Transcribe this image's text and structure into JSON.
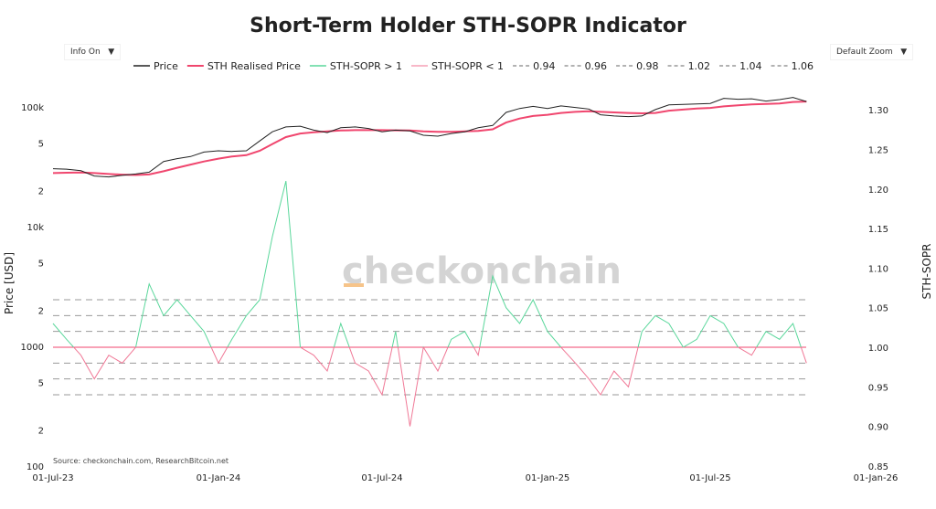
{
  "header": {
    "title": "Short-Term Holder STH-SOPR Indicator",
    "info_label": "Info On",
    "zoom_label": "Default Zoom"
  },
  "watermark": "checkonchain",
  "source": "Source: checkonchain.com, ResearchBitcoin.net",
  "colors": {
    "price": "#222222",
    "realised": "#f0466e",
    "sopr_above": "#5ad79b",
    "sopr_below": "#f07896",
    "ref_lines": "#999999"
  },
  "chart_data": {
    "type": "line",
    "title": "Short-Term Holder STH-SOPR Indicator",
    "y_left": {
      "label": "Price [USD]",
      "scale": "log",
      "range": [
        100,
        200000
      ],
      "ticks": [
        "100k",
        "5",
        "2",
        "10k",
        "5",
        "2",
        "1000",
        "5",
        "2",
        "100"
      ]
    },
    "y_right": {
      "label": "STH-SOPR",
      "range": [
        0.85,
        1.3
      ],
      "ticks": [
        "1.30",
        "1.25",
        "1.20",
        "1.15",
        "1.10",
        "1.05",
        "1.00",
        "0.95",
        "0.90",
        "0.85"
      ]
    },
    "x_ticks": [
      "01-Jul-23",
      "01-Jan-24",
      "01-Jul-24",
      "01-Jan-25",
      "01-Jul-25",
      "01-Jan-26"
    ],
    "x_range": [
      "2023-07-01",
      "2026-01-01"
    ],
    "legend": [
      "Price",
      "STH Realised Price",
      "STH-SOPR > 1",
      "STH-SOPR < 1",
      "0.94",
      "0.96",
      "0.98",
      "1.02",
      "1.04",
      "1.06"
    ],
    "ref_levels": [
      0.94,
      0.96,
      0.98,
      1.02,
      1.04,
      1.06
    ],
    "legend_position": "top",
    "dates": [
      "2023-07-01",
      "2023-07-16",
      "2023-08-01",
      "2023-08-16",
      "2023-09-01",
      "2023-09-16",
      "2023-10-01",
      "2023-10-16",
      "2023-11-01",
      "2023-11-16",
      "2023-12-01",
      "2023-12-16",
      "2024-01-01",
      "2024-01-16",
      "2024-02-01",
      "2024-02-16",
      "2024-03-01",
      "2024-03-16",
      "2024-04-01",
      "2024-04-16",
      "2024-05-01",
      "2024-05-16",
      "2024-06-01",
      "2024-06-16",
      "2024-07-01",
      "2024-07-16",
      "2024-08-01",
      "2024-08-16",
      "2024-09-01",
      "2024-09-16",
      "2024-10-01",
      "2024-10-16",
      "2024-11-01",
      "2024-11-16",
      "2024-12-01",
      "2024-12-16",
      "2025-01-01",
      "2025-01-16",
      "2025-02-01",
      "2025-02-16",
      "2025-03-01",
      "2025-03-16",
      "2025-04-01",
      "2025-04-16",
      "2025-05-01",
      "2025-05-16",
      "2025-06-01",
      "2025-06-16",
      "2025-07-01",
      "2025-07-16",
      "2025-08-01",
      "2025-08-16",
      "2025-09-01",
      "2025-09-16",
      "2025-10-01",
      "2025-10-16"
    ],
    "series": [
      {
        "name": "Price",
        "values": [
          30500,
          30200,
          29300,
          26500,
          26000,
          26800,
          27500,
          28500,
          35000,
          37000,
          38500,
          42000,
          43000,
          42500,
          43000,
          52000,
          62000,
          68000,
          69000,
          64000,
          61000,
          67000,
          68000,
          66000,
          62000,
          64000,
          63000,
          58000,
          57000,
          60000,
          62000,
          67000,
          70000,
          90000,
          97000,
          101000,
          97000,
          102000,
          99000,
          96000,
          86000,
          84000,
          83000,
          84000,
          95000,
          104000,
          105000,
          106000,
          107000,
          118000,
          116000,
          117000,
          112000,
          115000,
          120000,
          111000
        ]
      },
      {
        "name": "STH Realised Price",
        "values": [
          28000,
          28200,
          28300,
          28000,
          27500,
          27200,
          27000,
          27300,
          29000,
          31000,
          33000,
          35000,
          37000,
          38500,
          39500,
          43000,
          49000,
          56000,
          60000,
          61500,
          62500,
          63500,
          64000,
          64000,
          64000,
          63800,
          63500,
          62500,
          62000,
          62000,
          62500,
          63000,
          65000,
          74000,
          80000,
          84000,
          86000,
          89000,
          91000,
          92000,
          91000,
          90000,
          89000,
          88500,
          89000,
          93000,
          95000,
          97000,
          98000,
          101000,
          103000,
          105000,
          106000,
          107000,
          110000,
          111000
        ]
      },
      {
        "name": "STH-SOPR",
        "values": [
          1.03,
          1.01,
          0.99,
          0.96,
          0.99,
          0.98,
          1.0,
          1.08,
          1.04,
          1.06,
          1.04,
          1.02,
          0.98,
          1.01,
          1.04,
          1.06,
          1.14,
          1.21,
          1.0,
          0.99,
          0.97,
          1.03,
          0.98,
          0.97,
          0.94,
          1.02,
          0.9,
          1.0,
          0.97,
          1.01,
          1.02,
          0.99,
          1.09,
          1.05,
          1.03,
          1.06,
          1.02,
          1.0,
          0.98,
          0.96,
          0.94,
          0.97,
          0.95,
          1.02,
          1.04,
          1.03,
          1.0,
          1.01,
          1.04,
          1.03,
          1.0,
          0.99,
          1.02,
          1.01,
          1.03,
          0.98
        ]
      }
    ]
  }
}
